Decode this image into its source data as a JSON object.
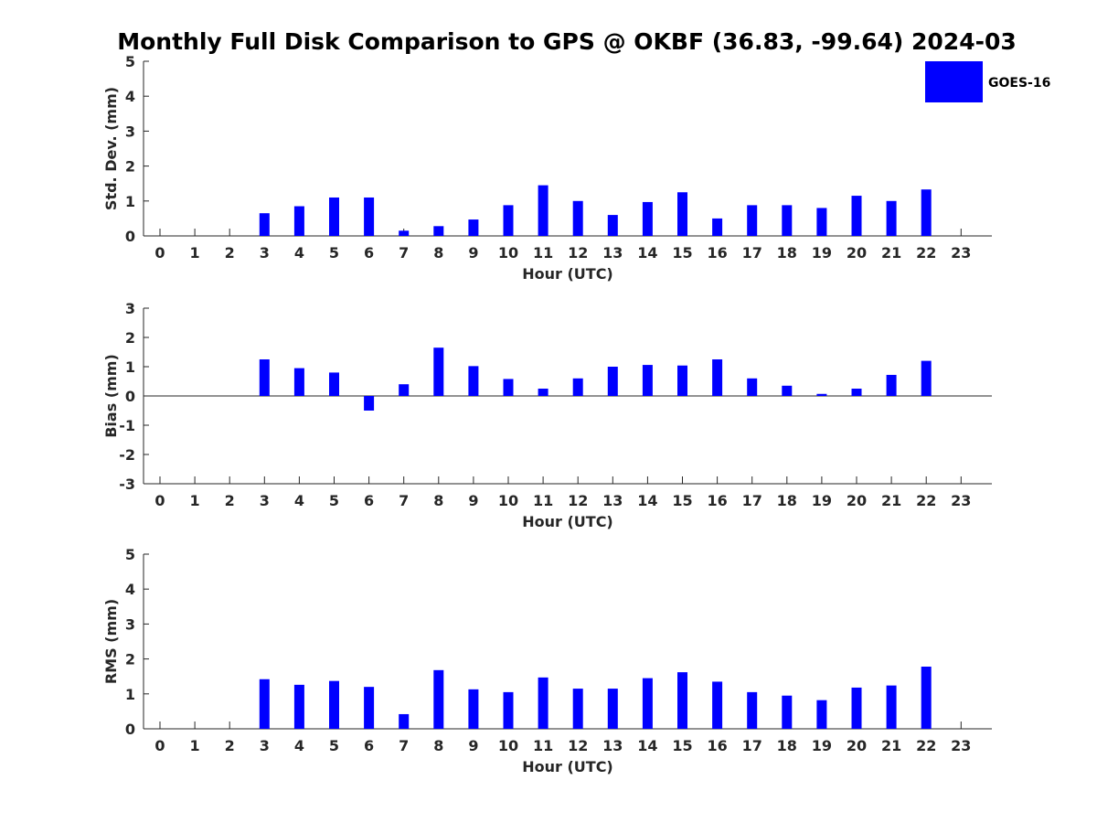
{
  "title": "Monthly Full Disk Comparison to GPS @ OKBF (36.83, -99.64) 2024-03",
  "legend": {
    "label": "GOES-16",
    "color": "#0000ff"
  },
  "chart_data": [
    {
      "type": "bar",
      "title": "",
      "xlabel": "Hour (UTC)",
      "ylabel": "Std. Dev. (mm)",
      "ylim": [
        0,
        5
      ],
      "yticks": [
        "0",
        "1",
        "2",
        "3",
        "4",
        "5"
      ],
      "categories": [
        "0",
        "1",
        "2",
        "3",
        "4",
        "5",
        "6",
        "7",
        "8",
        "9",
        "10",
        "11",
        "12",
        "13",
        "14",
        "15",
        "16",
        "17",
        "18",
        "19",
        "20",
        "21",
        "22",
        "23"
      ],
      "series": [
        {
          "name": "GOES-16",
          "values": [
            null,
            null,
            null,
            0.65,
            0.85,
            1.1,
            1.1,
            0.15,
            0.28,
            0.47,
            0.88,
            1.45,
            1.0,
            0.6,
            0.97,
            1.25,
            0.5,
            0.88,
            0.88,
            0.8,
            1.15,
            1.0,
            1.33,
            null
          ]
        }
      ]
    },
    {
      "type": "bar",
      "title": "",
      "xlabel": "Hour (UTC)",
      "ylabel": "Bias (mm)",
      "ylim": [
        -3,
        3
      ],
      "yticks": [
        "-3",
        "-2",
        "-1",
        "0",
        "1",
        "2",
        "3"
      ],
      "categories": [
        "0",
        "1",
        "2",
        "3",
        "4",
        "5",
        "6",
        "7",
        "8",
        "9",
        "10",
        "11",
        "12",
        "13",
        "14",
        "15",
        "16",
        "17",
        "18",
        "19",
        "20",
        "21",
        "22",
        "23"
      ],
      "series": [
        {
          "name": "GOES-16",
          "values": [
            null,
            null,
            null,
            1.25,
            0.95,
            0.8,
            -0.5,
            0.4,
            1.65,
            1.02,
            0.58,
            0.25,
            0.6,
            1.0,
            1.06,
            1.04,
            1.25,
            0.6,
            0.35,
            0.07,
            0.25,
            0.72,
            1.2,
            null
          ]
        }
      ]
    },
    {
      "type": "bar",
      "title": "",
      "xlabel": "Hour (UTC)",
      "ylabel": "RMS (mm)",
      "ylim": [
        0,
        5
      ],
      "yticks": [
        "0",
        "1",
        "2",
        "3",
        "4",
        "5"
      ],
      "categories": [
        "0",
        "1",
        "2",
        "3",
        "4",
        "5",
        "6",
        "7",
        "8",
        "9",
        "10",
        "11",
        "12",
        "13",
        "14",
        "15",
        "16",
        "17",
        "18",
        "19",
        "20",
        "21",
        "22",
        "23"
      ],
      "series": [
        {
          "name": "GOES-16",
          "values": [
            null,
            null,
            null,
            1.42,
            1.26,
            1.37,
            1.2,
            0.42,
            1.68,
            1.13,
            1.05,
            1.47,
            1.15,
            1.15,
            1.45,
            1.62,
            1.35,
            1.05,
            0.95,
            0.82,
            1.18,
            1.24,
            1.78,
            null
          ]
        }
      ]
    }
  ]
}
